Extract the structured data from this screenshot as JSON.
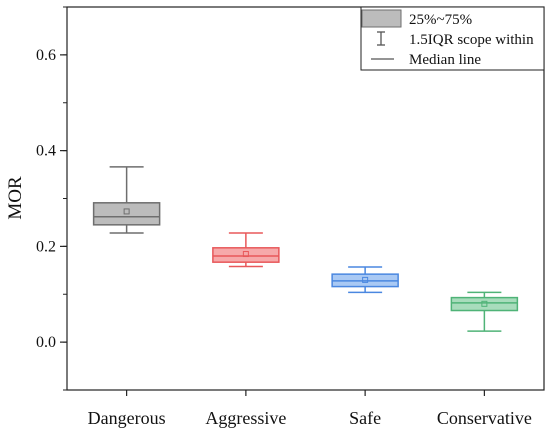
{
  "chart_data": {
    "type": "box",
    "title": "",
    "xlabel": "",
    "ylabel": "MOR",
    "ylim": [
      -0.1,
      0.7
    ],
    "yticks": [
      "0.0",
      "0.2",
      "0.4",
      "0.6"
    ],
    "ytick_values": [
      0.0,
      0.2,
      0.4,
      0.6
    ],
    "grid": false,
    "legend_position": "top-right",
    "legend": {
      "box_label": "25%~75%",
      "whisker_label": "1.5IQR scope within",
      "median_label": "Median line"
    },
    "categories": [
      "Dangerous",
      "Aggressive",
      "Safe",
      "Conservative"
    ],
    "boxes": [
      {
        "name": "Dangerous",
        "whisker_low": 0.228,
        "q1": 0.245,
        "median": 0.262,
        "mean": 0.273,
        "q3": 0.291,
        "whisker_high": 0.366,
        "edge_color": "#6e6e6e",
        "fill_color": "#bcbcbc"
      },
      {
        "name": "Aggressive",
        "whisker_low": 0.158,
        "q1": 0.167,
        "median": 0.18,
        "mean": 0.184,
        "q3": 0.197,
        "whisker_high": 0.228,
        "edge_color": "#e8585a",
        "fill_color": "#f6a9aa"
      },
      {
        "name": "Safe",
        "whisker_low": 0.104,
        "q1": 0.116,
        "median": 0.128,
        "mean": 0.13,
        "q3": 0.142,
        "whisker_high": 0.157,
        "edge_color": "#4a87e0",
        "fill_color": "#a9c9f4"
      },
      {
        "name": "Conservative",
        "whisker_low": 0.023,
        "q1": 0.066,
        "median": 0.082,
        "mean": 0.08,
        "q3": 0.093,
        "whisker_high": 0.104,
        "edge_color": "#4fb377",
        "fill_color": "#a8dcbc"
      }
    ]
  }
}
